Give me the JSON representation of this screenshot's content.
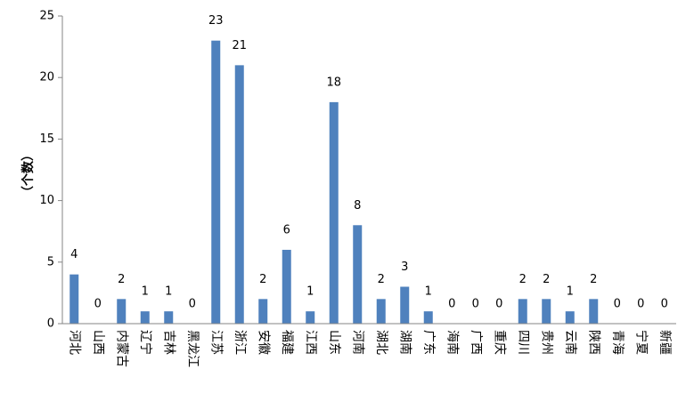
{
  "chart_data": {
    "type": "bar",
    "title": "",
    "xlabel": "",
    "ylabel": "（个数）",
    "ylim": [
      0,
      25
    ],
    "yticks": [
      0,
      5,
      10,
      15,
      20,
      25
    ],
    "categories": [
      "河北",
      "山西",
      "内蒙古",
      "辽宁",
      "吉林",
      "黑龙江",
      "江苏",
      "浙江",
      "安徽",
      "福建",
      "江西",
      "山东",
      "河南",
      "湖北",
      "湖南",
      "广东",
      "海南",
      "广西",
      "重庆",
      "四川",
      "贵州",
      "云南",
      "陕西",
      "青海",
      "宁夏",
      "新疆"
    ],
    "values": [
      4,
      0,
      2,
      1,
      1,
      0,
      23,
      21,
      2,
      6,
      1,
      18,
      8,
      2,
      3,
      1,
      0,
      0,
      0,
      2,
      2,
      1,
      2,
      0,
      0,
      0
    ],
    "data_labels": true,
    "grid": false,
    "show_legend": false,
    "bar_color": "#4F81BD",
    "axis_color": "#868686"
  }
}
